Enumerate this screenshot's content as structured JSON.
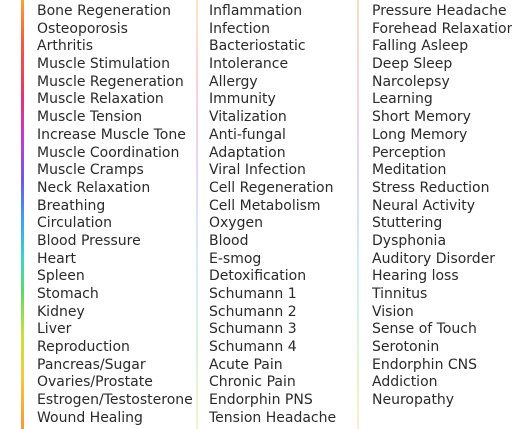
{
  "columns": [
    [
      "Bone Regeneration",
      "Osteoporosis",
      "Arthritis",
      "Muscle Stimulation",
      "Muscle Regeneration",
      "Muscle Relaxation",
      "Muscle Tension",
      "Increase Muscle Tone",
      "Muscle Coordination",
      "Muscle Cramps",
      "Neck Relaxation",
      "Breathing",
      "Circulation",
      "Blood Pressure",
      "Heart",
      "Spleen",
      "Stomach",
      "Kidney",
      "Liver",
      "Reproduction",
      "Pancreas/Sugar",
      "Ovaries/Prostate",
      "Estrogen/Testosterone",
      "Wound Healing"
    ],
    [
      "Inflammation",
      "Infection",
      "Bacteriostatic",
      "Intolerance",
      "Allergy",
      "Immunity",
      "Vitalization",
      "Anti-fungal",
      "Adaptation",
      "Viral Infection",
      "Cell Regeneration",
      "Cell Metabolism",
      "Oxygen",
      "Blood",
      "E-smog",
      "Detoxification",
      "Schumann 1",
      "Schumann 2",
      "Schumann 3",
      "Schumann 4",
      "Acute Pain",
      "Chronic Pain",
      "Endorphin PNS",
      "Tension Headache"
    ],
    [
      "Pressure Headache",
      "Forehead Relaxation",
      "Falling Asleep",
      "Deep Sleep",
      "Narcolepsy",
      "Learning",
      "Short Memory",
      "Long Memory",
      "Perception",
      "Meditation",
      "Stress Reduction",
      "Neural Activity",
      "Stuttering",
      "Dysphonia",
      "Auditory Disorder",
      "Hearing loss",
      "Tinnitus",
      "Vision",
      "Sense of Touch",
      "Serotonin",
      "Endorphin CNS",
      "Addiction",
      "Neuropathy"
    ]
  ]
}
